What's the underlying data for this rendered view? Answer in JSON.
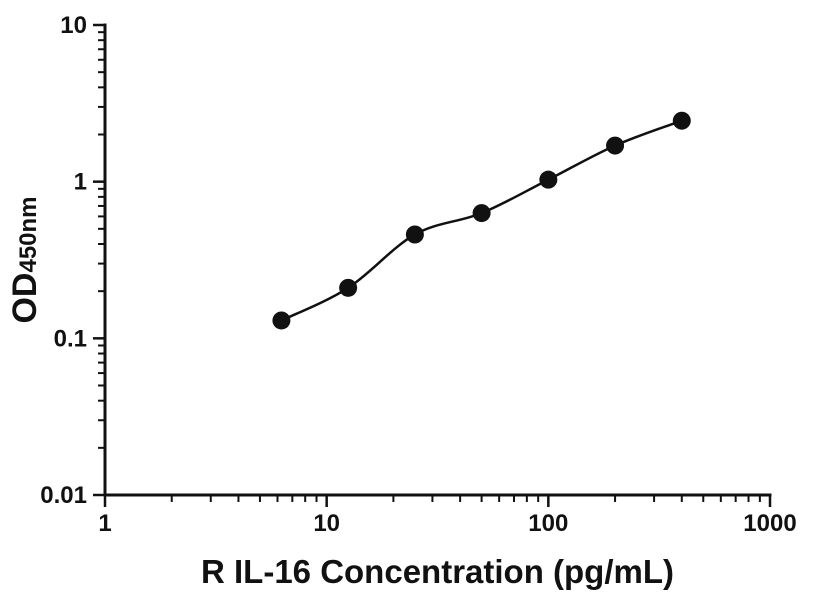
{
  "chart_data": {
    "type": "scatter",
    "title": "",
    "xlabel": "R IL-16 Concentration (pg/mL)",
    "ylabel_main": "OD",
    "ylabel_sub": "450nm",
    "xscale": "log",
    "yscale": "log",
    "xlim": [
      1,
      1000
    ],
    "ylim": [
      0.01,
      10
    ],
    "x": [
      6.25,
      12.5,
      25,
      50,
      100,
      200,
      400
    ],
    "y": [
      0.13,
      0.21,
      0.46,
      0.63,
      1.03,
      1.7,
      2.45
    ],
    "x_ticks": [
      {
        "value": 1,
        "label": "1"
      },
      {
        "value": 10,
        "label": "10"
      },
      {
        "value": 100,
        "label": "100"
      },
      {
        "value": 1000,
        "label": "1000"
      }
    ],
    "y_ticks": [
      {
        "value": 0.01,
        "label": "0.01"
      },
      {
        "value": 0.1,
        "label": "0.1"
      },
      {
        "value": 1,
        "label": "1"
      },
      {
        "value": 10,
        "label": "10"
      }
    ],
    "curve_type": "smooth",
    "grid": false,
    "legend": "none",
    "marker_color": "#111111",
    "line_color": "#111111",
    "axis_color": "#111111",
    "background_color": "#ffffff"
  }
}
